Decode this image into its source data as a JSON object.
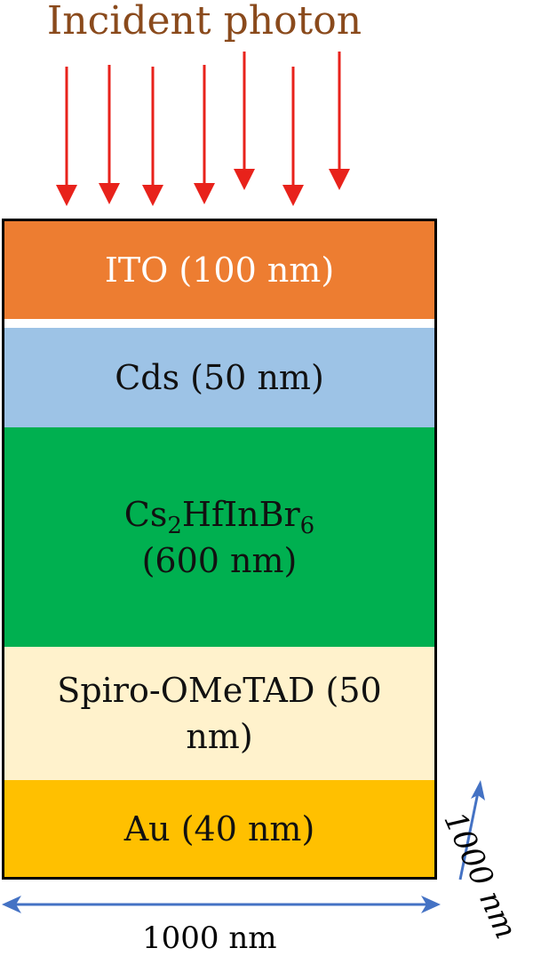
{
  "title": "Incident photon",
  "layers": [
    {
      "label": "ITO (100 nm)",
      "color": "#ed7d31"
    },
    {
      "label": "Cds (50 nm)",
      "color": "#9dc3e6"
    },
    {
      "formula_main": "Cs",
      "sub1": "2",
      "formula_mid": "HfInBr",
      "sub2": "6",
      "thickness": "(600 nm)",
      "color": "#00b050"
    },
    {
      "label_line1": "Spiro-OMeTAD (50",
      "label_line2": "nm)",
      "color": "#fff2cc"
    },
    {
      "label": "Au (40 nm)",
      "color": "#ffc000"
    }
  ],
  "dimensions": {
    "width_label": "1000 nm",
    "depth_label": "1000 nm"
  },
  "colors": {
    "arrow": "#e8221b",
    "dimension_arrow": "#4472c4",
    "title": "#8a4a1c"
  }
}
